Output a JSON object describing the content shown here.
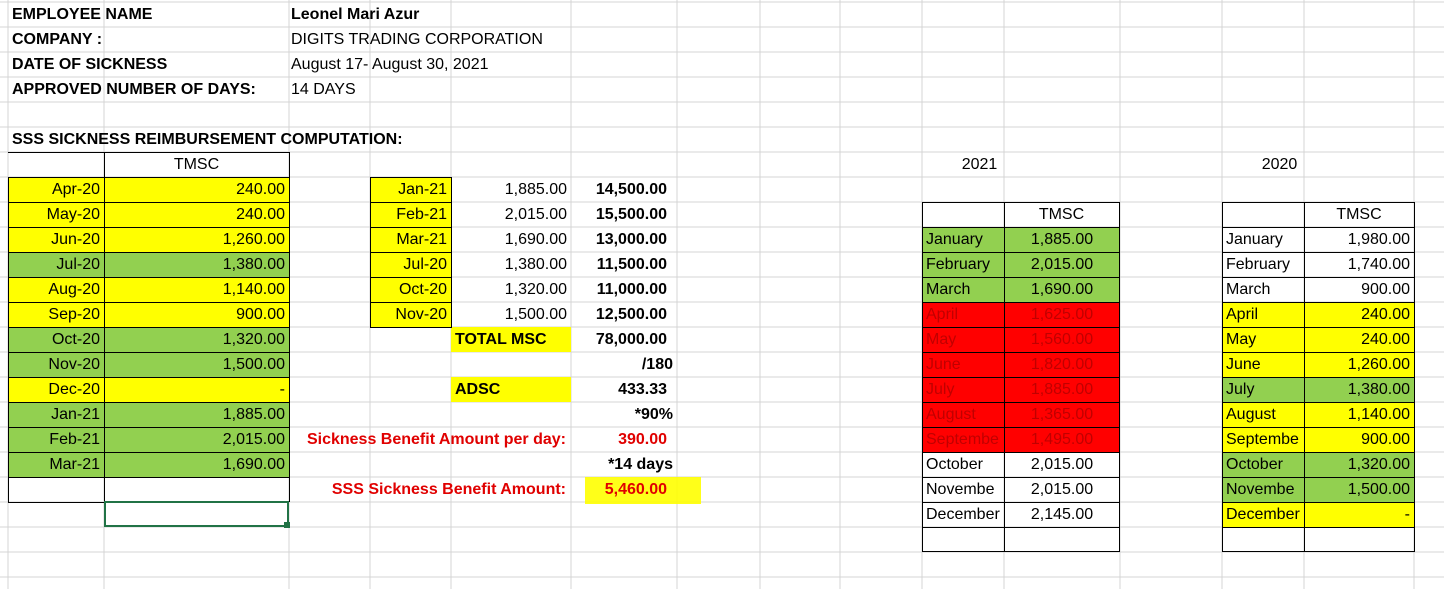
{
  "header": {
    "employee_label": "EMPLOYEE NAME",
    "employee_value": "Leonel Mari Azur",
    "company_label": "COMPANY :",
    "company_value": "DIGITS TRADING CORPORATION",
    "date_label": "DATE OF SICKNESS",
    "date_value": "August 17- August 30, 2021",
    "days_label": "APPROVED NUMBER OF DAYS:",
    "days_value": "14 DAYS"
  },
  "section_title": "SSS SICKNESS REIMBURSEMENT COMPUTATION:",
  "left_table": {
    "header": "TMSC",
    "rows": [
      {
        "month": "Apr-20",
        "value": "240.00",
        "color": "#ffff00"
      },
      {
        "month": "May-20",
        "value": "240.00",
        "color": "#ffff00"
      },
      {
        "month": "Jun-20",
        "value": "1,260.00",
        "color": "#ffff00"
      },
      {
        "month": "Jul-20",
        "value": "1,380.00",
        "color": "#92d050"
      },
      {
        "month": "Aug-20",
        "value": "1,140.00",
        "color": "#ffff00"
      },
      {
        "month": "Sep-20",
        "value": "900.00",
        "color": "#ffff00"
      },
      {
        "month": "Oct-20",
        "value": "1,320.00",
        "color": "#92d050"
      },
      {
        "month": "Nov-20",
        "value": "1,500.00",
        "color": "#92d050"
      },
      {
        "month": "Dec-20",
        "value": "-",
        "color": "#ffff00"
      },
      {
        "month": "Jan-21",
        "value": "1,885.00",
        "color": "#92d050"
      },
      {
        "month": "Feb-21",
        "value": "2,015.00",
        "color": "#92d050"
      },
      {
        "month": "Mar-21",
        "value": "1,690.00",
        "color": "#92d050"
      }
    ]
  },
  "mid_table": {
    "rows": [
      {
        "month": "Jan-21",
        "tmsc": "1,885.00",
        "msc": "14,500.00"
      },
      {
        "month": "Feb-21",
        "tmsc": "2,015.00",
        "msc": "15,500.00"
      },
      {
        "month": "Mar-21",
        "tmsc": "1,690.00",
        "msc": "13,000.00"
      },
      {
        "month": "Jul-20",
        "tmsc": "1,380.00",
        "msc": "11,500.00"
      },
      {
        "month": "Oct-20",
        "tmsc": "1,320.00",
        "msc": "11,000.00"
      },
      {
        "month": "Nov-20",
        "tmsc": "1,500.00",
        "msc": "12,500.00"
      }
    ],
    "total_msc_label": "TOTAL MSC",
    "total_msc_value": "78,000.00",
    "divisor": "/180",
    "adsc_label": "ADSC",
    "adsc_value": "433.33",
    "percent": "*90%",
    "benefit_per_day_label": "Sickness Benefit Amount per day:",
    "benefit_per_day_value": "390.00",
    "days_multiplier": "*14 days",
    "benefit_total_label": "SSS Sickness Benefit Amount:",
    "benefit_total_value": "5,460.00"
  },
  "table_2021": {
    "year": "2021",
    "header": "TMSC",
    "rows": [
      {
        "month": "January",
        "value": "1,885.00"
      },
      {
        "month": "February",
        "value": "2,015.00"
      },
      {
        "month": "March",
        "value": "1,690.00"
      },
      {
        "month": "April",
        "value": "1,625.00"
      },
      {
        "month": "May",
        "value": "1,560.00"
      },
      {
        "month": "June",
        "value": "1,820.00"
      },
      {
        "month": "July",
        "value": "1,885.00"
      },
      {
        "month": "August",
        "value": "1,365.00"
      },
      {
        "month": "Septembe",
        "value": "1,495.00"
      },
      {
        "month": "October",
        "value": "2,015.00"
      },
      {
        "month": "Novembe",
        "value": "2,015.00"
      },
      {
        "month": "December",
        "value": "2,145.00"
      }
    ]
  },
  "table_2020": {
    "year": "2020",
    "header": "TMSC",
    "rows": [
      {
        "month": "January",
        "value": "1,980.00"
      },
      {
        "month": "February",
        "value": "1,740.00"
      },
      {
        "month": "March",
        "value": "900.00"
      },
      {
        "month": "April",
        "value": "240.00"
      },
      {
        "month": "May",
        "value": "240.00"
      },
      {
        "month": "June",
        "value": "1,260.00"
      },
      {
        "month": "July",
        "value": "1,380.00"
      },
      {
        "month": "August",
        "value": "1,140.00"
      },
      {
        "month": "Septembe",
        "value": "900.00"
      },
      {
        "month": "October",
        "value": "1,320.00"
      },
      {
        "month": "Novembe",
        "value": "1,500.00"
      },
      {
        "month": "December",
        "value": "-"
      }
    ]
  },
  "colors": {
    "yellow": "#ffff00",
    "green": "#92d050",
    "red": "#ff0000",
    "gridline": "#d4d4d4",
    "selection": "#217346"
  }
}
